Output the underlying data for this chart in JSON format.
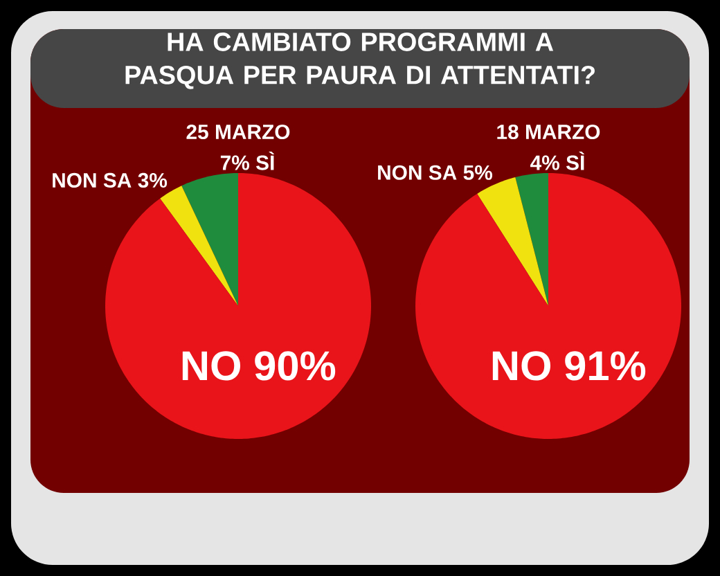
{
  "chart_data": [
    {
      "type": "pie",
      "title": "HA CAMBIATO PROGRAMMI A PASQUA PER PAURA DI ATTENTATI?",
      "subtitle": "25 MARZO",
      "categories": [
        "SÌ",
        "NON SA",
        "NO"
      ],
      "values": [
        7,
        3,
        90
      ],
      "value_labels": [
        "7%",
        "3%",
        "90%"
      ],
      "colors": [
        "#1e8c3c",
        "#f0e20f",
        "#e8141a"
      ]
    },
    {
      "type": "pie",
      "subtitle": "18 MARZO",
      "categories": [
        "SÌ",
        "NON SA",
        "NO"
      ],
      "values": [
        4,
        5,
        91
      ],
      "value_labels": [
        "4%",
        "5%",
        "91%"
      ],
      "colors": [
        "#1e8c3c",
        "#f0e20f",
        "#e8141a"
      ]
    }
  ]
}
